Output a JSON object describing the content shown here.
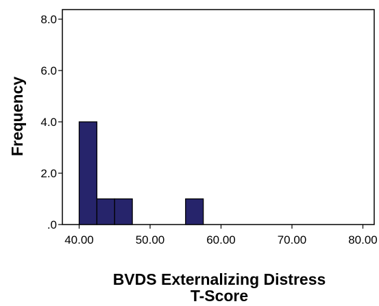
{
  "chart_data": {
    "type": "bar",
    "subtype": "histogram",
    "title": "",
    "xlabel_lines": [
      "BVDS Externalizing Distress",
      "T-Score"
    ],
    "ylabel": "Frequency",
    "xlim": [
      40,
      80
    ],
    "ylim": [
      0,
      8
    ],
    "x_ticks": [
      40,
      50,
      60,
      70,
      80
    ],
    "x_tick_labels": [
      "40.00",
      "50.00",
      "60.00",
      "70.00",
      "80.00"
    ],
    "y_ticks": [
      0,
      2,
      4,
      6,
      8
    ],
    "y_tick_labels": [
      ".0",
      "2.0",
      "4.0",
      "6.0",
      "8.0"
    ],
    "bin_width": 2.5,
    "bins": [
      {
        "start": 40.0,
        "end": 42.5,
        "count": 4
      },
      {
        "start": 42.5,
        "end": 45.0,
        "count": 1
      },
      {
        "start": 45.0,
        "end": 47.5,
        "count": 1
      },
      {
        "start": 55.0,
        "end": 57.5,
        "count": 1
      }
    ],
    "grid": false,
    "bar_color": "#26246b",
    "bar_edge_color": "#000000"
  }
}
